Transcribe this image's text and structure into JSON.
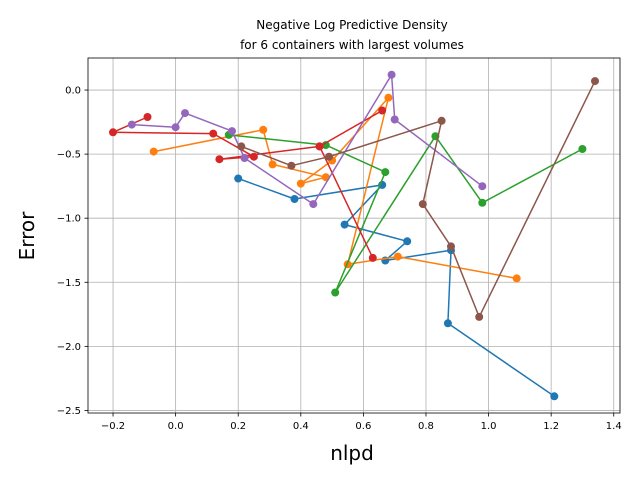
{
  "chart_data": {
    "type": "line",
    "title_line1": "Negative Log Predictive Density",
    "title_line2": "for 6 containers with largest volumes",
    "xlabel": "nlpd",
    "ylabel": "Error",
    "xlim": [
      -0.28,
      1.42
    ],
    "ylim": [
      -2.52,
      0.25
    ],
    "xticks": [
      -0.2,
      0.0,
      0.2,
      0.4,
      0.6,
      0.8,
      1.0,
      1.2,
      1.4
    ],
    "yticks": [
      -2.5,
      -2.0,
      -1.5,
      -1.0,
      -0.5,
      0.0
    ],
    "xtick_labels": [
      "−0.2",
      "0.0",
      "0.2",
      "0.4",
      "0.6",
      "0.8",
      "1.0",
      "1.2",
      "1.4"
    ],
    "ytick_labels": [
      "−2.5",
      "−2.0",
      "−1.5",
      "−1.0",
      "−0.5",
      "0.0"
    ],
    "grid": true,
    "series": [
      {
        "color": "#1f77b4",
        "points": [
          [
            0.2,
            -0.69
          ],
          [
            0.38,
            -0.85
          ],
          [
            0.66,
            -0.74
          ],
          [
            0.54,
            -1.05
          ],
          [
            0.74,
            -1.18
          ],
          [
            0.67,
            -1.33
          ],
          [
            0.88,
            -1.25
          ],
          [
            0.87,
            -1.82
          ],
          [
            1.21,
            -2.39
          ]
        ]
      },
      {
        "color": "#ff7f0e",
        "points": [
          [
            -0.07,
            -0.48
          ],
          [
            0.28,
            -0.31
          ],
          [
            0.31,
            -0.58
          ],
          [
            0.48,
            -0.68
          ],
          [
            0.4,
            -0.73
          ],
          [
            0.5,
            -0.55
          ],
          [
            0.68,
            -0.06
          ],
          [
            0.55,
            -1.36
          ],
          [
            0.71,
            -1.3
          ],
          [
            1.09,
            -1.47
          ]
        ]
      },
      {
        "color": "#2ca02c",
        "points": [
          [
            0.17,
            -0.35
          ],
          [
            0.48,
            -0.43
          ],
          [
            0.67,
            -0.64
          ],
          [
            0.51,
            -1.58
          ],
          [
            0.83,
            -0.36
          ],
          [
            0.98,
            -0.88
          ],
          [
            1.3,
            -0.46
          ]
        ]
      },
      {
        "color": "#d62728",
        "points": [
          [
            -0.09,
            -0.21
          ],
          [
            -0.2,
            -0.33
          ],
          [
            0.12,
            -0.34
          ],
          [
            0.25,
            -0.52
          ],
          [
            0.14,
            -0.54
          ],
          [
            0.46,
            -0.44
          ],
          [
            0.66,
            -0.16
          ],
          [
            0.46,
            -0.44
          ],
          [
            0.63,
            -1.31
          ]
        ]
      },
      {
        "color": "#9467bd",
        "points": [
          [
            -0.14,
            -0.27
          ],
          [
            0.0,
            -0.29
          ],
          [
            0.03,
            -0.18
          ],
          [
            0.18,
            -0.32
          ],
          [
            0.22,
            -0.53
          ],
          [
            0.44,
            -0.89
          ],
          [
            0.69,
            0.12
          ],
          [
            0.7,
            -0.23
          ],
          [
            0.98,
            -0.75
          ]
        ]
      },
      {
        "color": "#8c564b",
        "points": [
          [
            0.21,
            -0.44
          ],
          [
            0.37,
            -0.59
          ],
          [
            0.49,
            -0.52
          ],
          [
            0.85,
            -0.24
          ],
          [
            0.79,
            -0.89
          ],
          [
            0.88,
            -1.22
          ],
          [
            0.97,
            -1.77
          ],
          [
            1.34,
            0.07
          ]
        ]
      }
    ]
  }
}
